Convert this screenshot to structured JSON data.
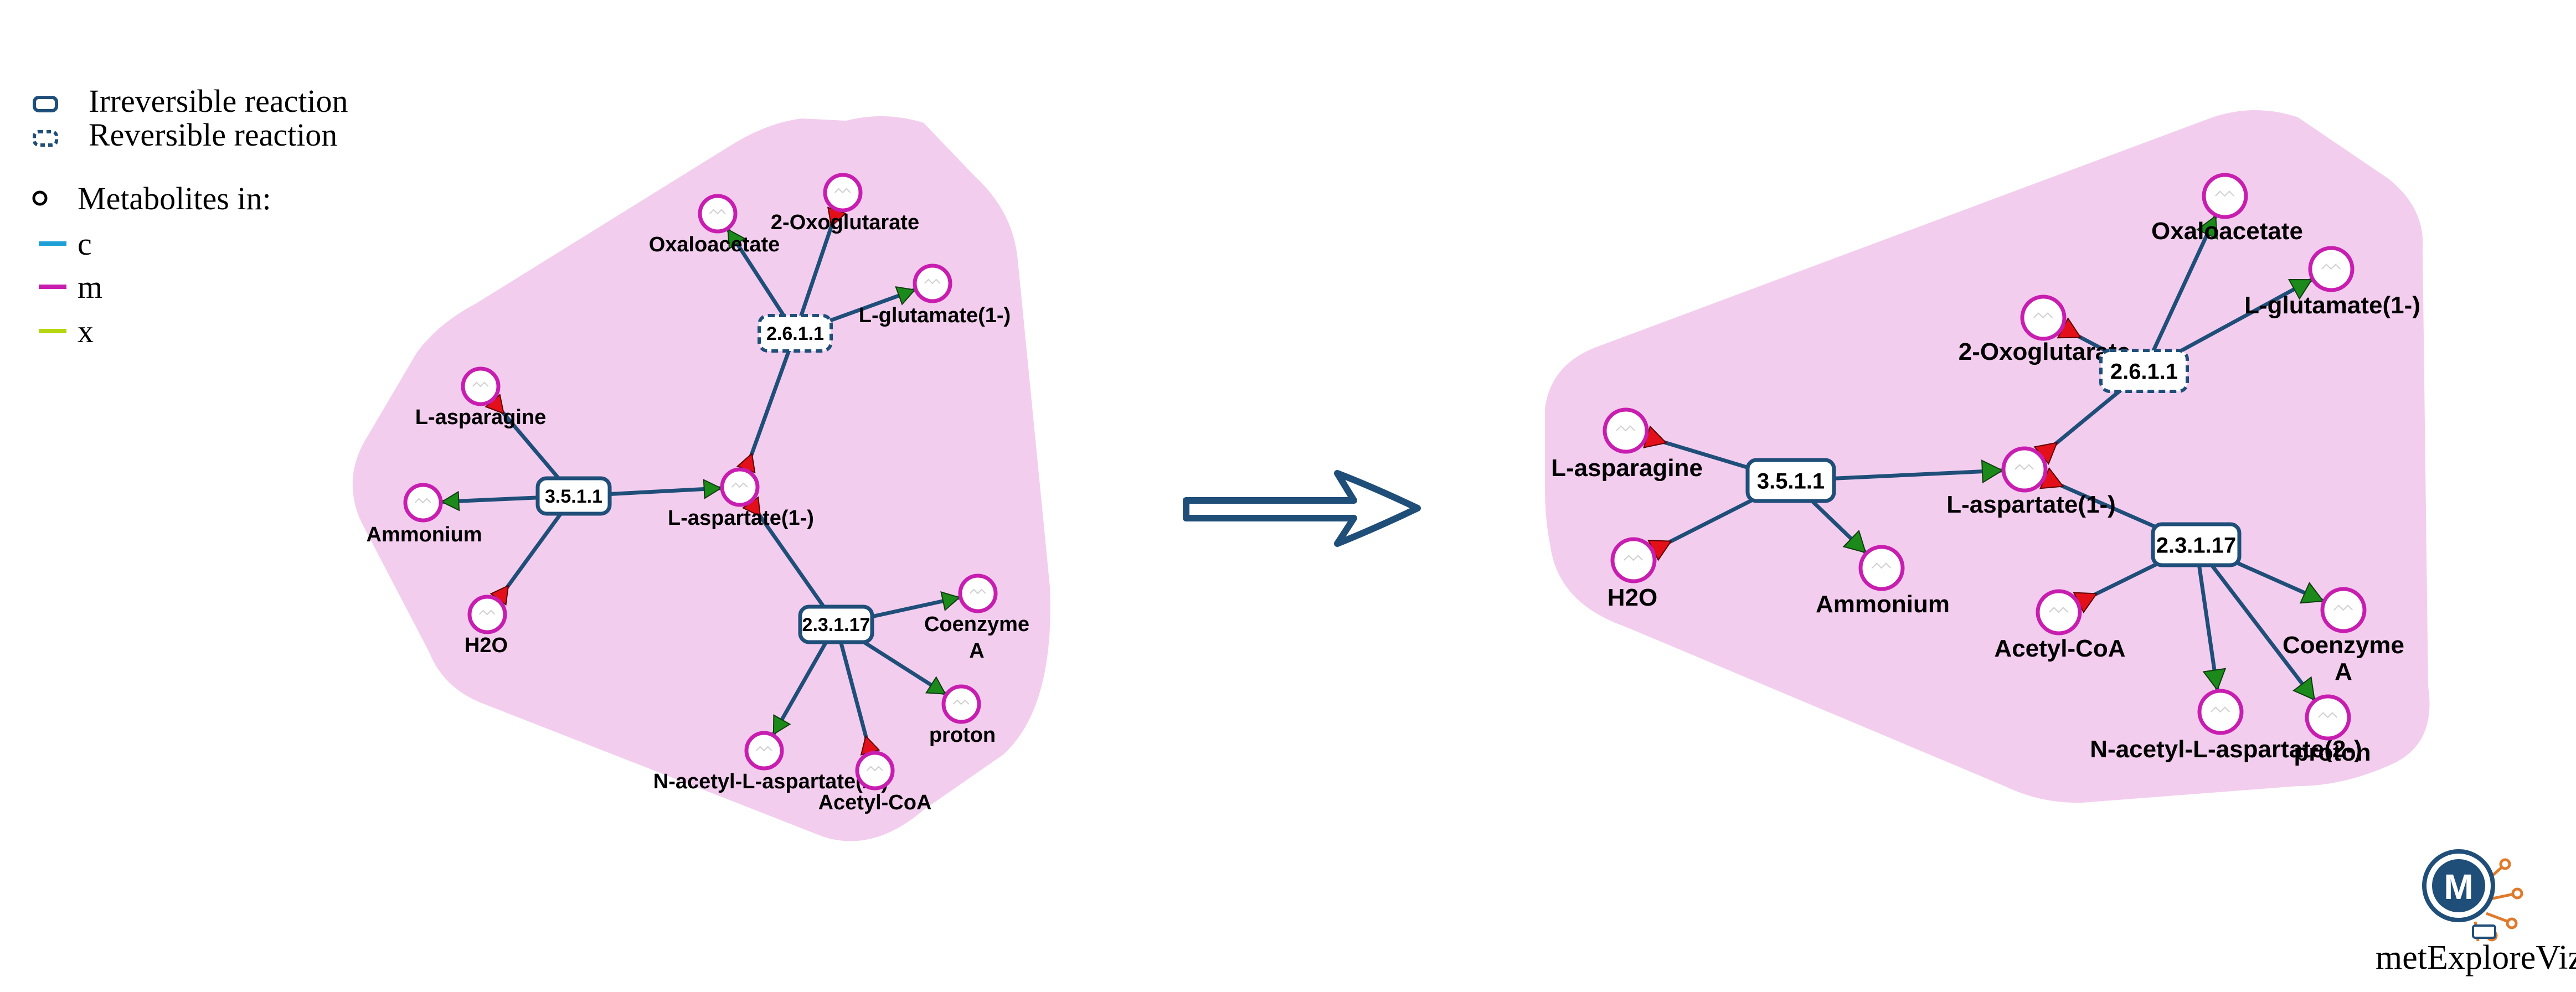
{
  "legend": {
    "irreversible": "Irreversible reaction",
    "reversible": "Reversible reaction",
    "metabolites_title": "Metabolites in:",
    "compartments": [
      {
        "label": "c",
        "color": "#1e9fd6"
      },
      {
        "label": "m",
        "color": "#c81eb0"
      },
      {
        "label": "x",
        "color": "#b5d60f"
      }
    ]
  },
  "colors": {
    "hull": "#f3cdee",
    "edge": "#1f4e79",
    "metabolite_stroke": "#c81eb0",
    "arrow_product": "#1b8a1b",
    "arrow_substrate": "#e3101a",
    "transition_arrow": "#1f4e79"
  },
  "left_graph": {
    "reactions": [
      {
        "id": "rx1",
        "label": "3.5.1.1",
        "reversible": false
      },
      {
        "id": "rx2",
        "label": "2.6.1.1",
        "reversible": true
      },
      {
        "id": "rx3",
        "label": "2.3.1.17",
        "reversible": false
      }
    ],
    "metabolites": [
      {
        "id": "asn",
        "label": "L-asparagine"
      },
      {
        "id": "nh4",
        "label": "Ammonium"
      },
      {
        "id": "h2o",
        "label": "H2O"
      },
      {
        "id": "asp",
        "label": "L-aspartate(1-)"
      },
      {
        "id": "oaa",
        "label": "Oxaloacetate"
      },
      {
        "id": "akg",
        "label": "2-Oxoglutarate"
      },
      {
        "id": "glu",
        "label": "L-glutamate(1-)"
      },
      {
        "id": "coa",
        "label": [
          "Coenzyme",
          "A"
        ]
      },
      {
        "id": "hplus",
        "label": "proton"
      },
      {
        "id": "nacasp",
        "label": "N-acetyl-L-aspartate(2-)"
      },
      {
        "id": "accoa",
        "label": "Acetyl-CoA"
      }
    ]
  },
  "right_graph": {
    "reactions": [
      {
        "id": "rx1",
        "label": "3.5.1.1",
        "reversible": false
      },
      {
        "id": "rx2",
        "label": "2.6.1.1",
        "reversible": true
      },
      {
        "id": "rx3",
        "label": "2.3.1.17",
        "reversible": false
      }
    ],
    "metabolites": [
      {
        "id": "asn",
        "label": "L-asparagine"
      },
      {
        "id": "h2o",
        "label": "H2O"
      },
      {
        "id": "nh4",
        "label": "Ammonium"
      },
      {
        "id": "asp",
        "label": "L-aspartate(1-)"
      },
      {
        "id": "oaa",
        "label": "Oxaloacetate"
      },
      {
        "id": "akg",
        "label": "2-Oxoglutarate"
      },
      {
        "id": "glu",
        "label": "L-glutamate(1-)"
      },
      {
        "id": "accoa",
        "label": "Acetyl-CoA"
      },
      {
        "id": "nacasp",
        "label": "N-acetyl-L-aspartate(2-)"
      },
      {
        "id": "coa",
        "label": [
          "Coenzyme",
          "A"
        ]
      },
      {
        "id": "hplus",
        "label": "proton"
      }
    ]
  },
  "brand": {
    "name": "metExploreViz",
    "logo_letter": "M"
  }
}
